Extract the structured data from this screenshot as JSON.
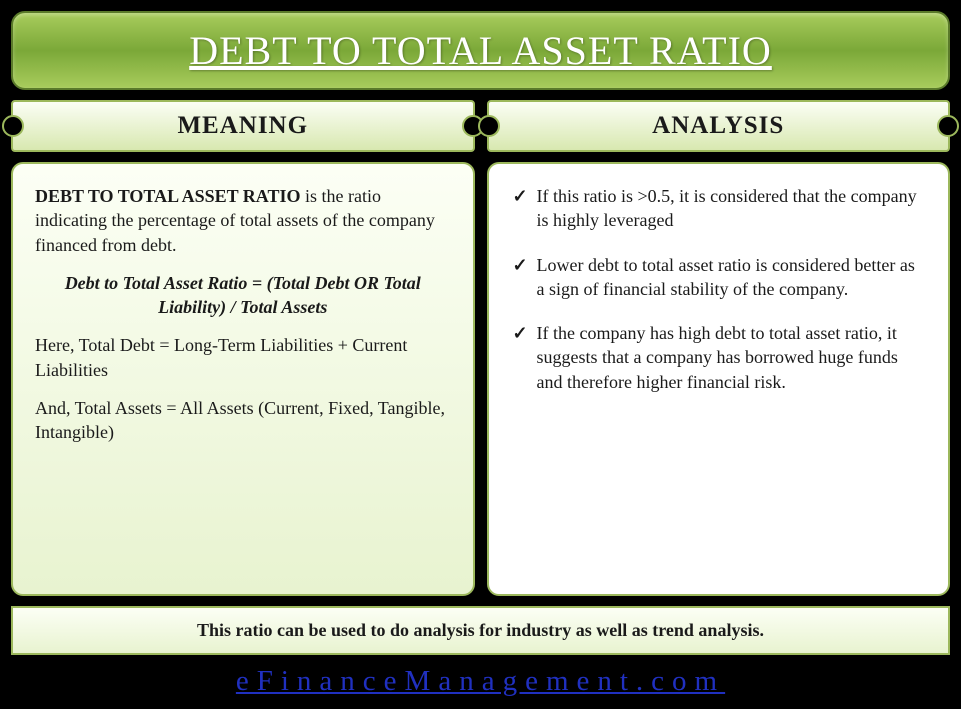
{
  "colors": {
    "page_bg": "#000000",
    "banner_gradient_top": "#a8cc5c",
    "banner_gradient_mid": "#7ba838",
    "banner_border": "#5a7a2a",
    "banner_text": "#ffffff",
    "section_gradient_top": "#fbfef5",
    "section_gradient_bottom": "#d8e8b0",
    "card_border": "#9cb85c",
    "card_green_top": "#fcfff5",
    "card_green_bottom": "#e8f3d0",
    "card_white_bg": "#ffffff",
    "body_text": "#1a1a1a",
    "link_color": "#2030c0"
  },
  "title": "DEBT TO TOTAL ASSET RATIO",
  "sections": {
    "meaning": {
      "header": "MEANING",
      "lead_term": "DEBT TO TOTAL ASSET RATIO",
      "lead_rest": " is the ratio indicating the percentage of total assets of the company financed from debt.",
      "formula": "Debt to Total Asset Ratio = (Total Debt OR Total Liability) / Total Assets",
      "note1": "Here, Total Debt = Long-Term Liabilities + Current Liabilities",
      "note2": "And, Total Assets = All Assets (Current, Fixed, Tangible, Intangible)"
    },
    "analysis": {
      "header": "ANALYSIS",
      "points": [
        "If this ratio is >0.5, it is considered that the company is highly leveraged",
        "Lower debt to total asset ratio is considered better as a sign of financial stability of the company.",
        "If the company has high debt to total asset ratio, it suggests that a company has borrowed huge funds and therefore higher financial risk."
      ]
    }
  },
  "footer_note": "This ratio can be used to do analysis for industry as well as trend analysis.",
  "site_link": "eFinanceManagement.com"
}
